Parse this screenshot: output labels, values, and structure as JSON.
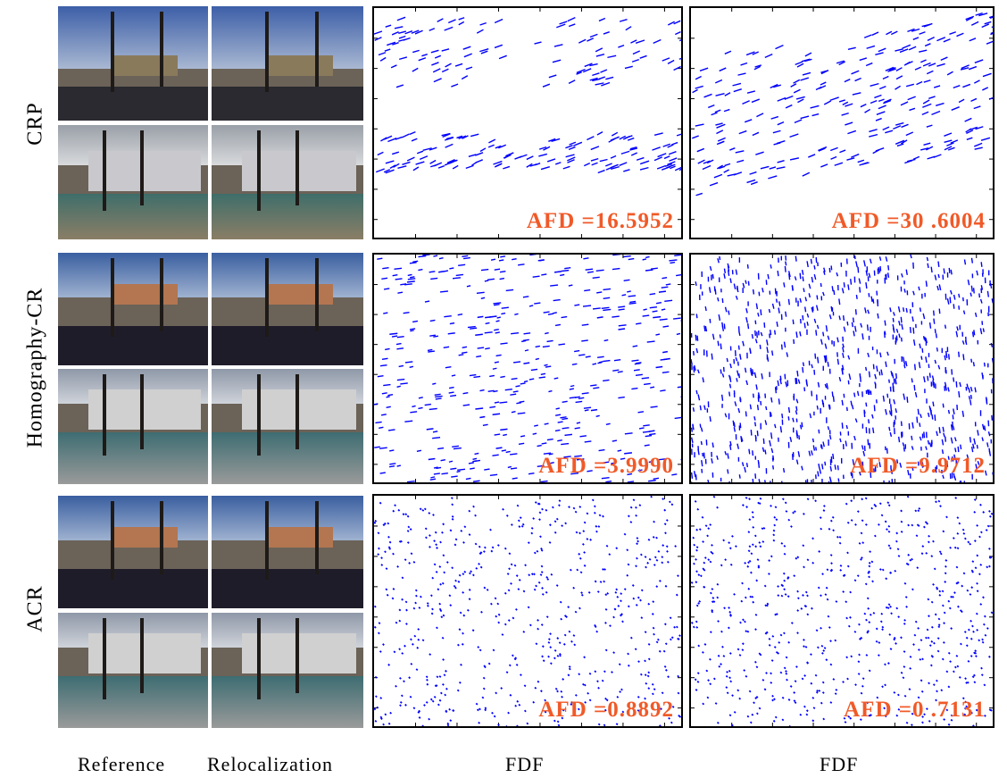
{
  "rows": [
    {
      "label": "CRP",
      "afd": [
        "AFD =16.5952",
        "AFD =30 .6004"
      ],
      "style": "flow"
    },
    {
      "label": "Homography-CR",
      "afd": [
        "AFD =3.9990",
        "AFD =9.9712"
      ],
      "style": "dense"
    },
    {
      "label": "ACR",
      "afd": [
        "AFD =0.8892",
        "AFD =0 .7131"
      ],
      "style": "dots"
    }
  ],
  "columns": {
    "reference": "Reference",
    "relocalization": "Relocalization",
    "fdf_1": "FDF",
    "fdf_2": "FDF"
  },
  "colors": {
    "vector": "#0000ff",
    "afd_text": "#f05a28",
    "axis": "#000000"
  }
}
